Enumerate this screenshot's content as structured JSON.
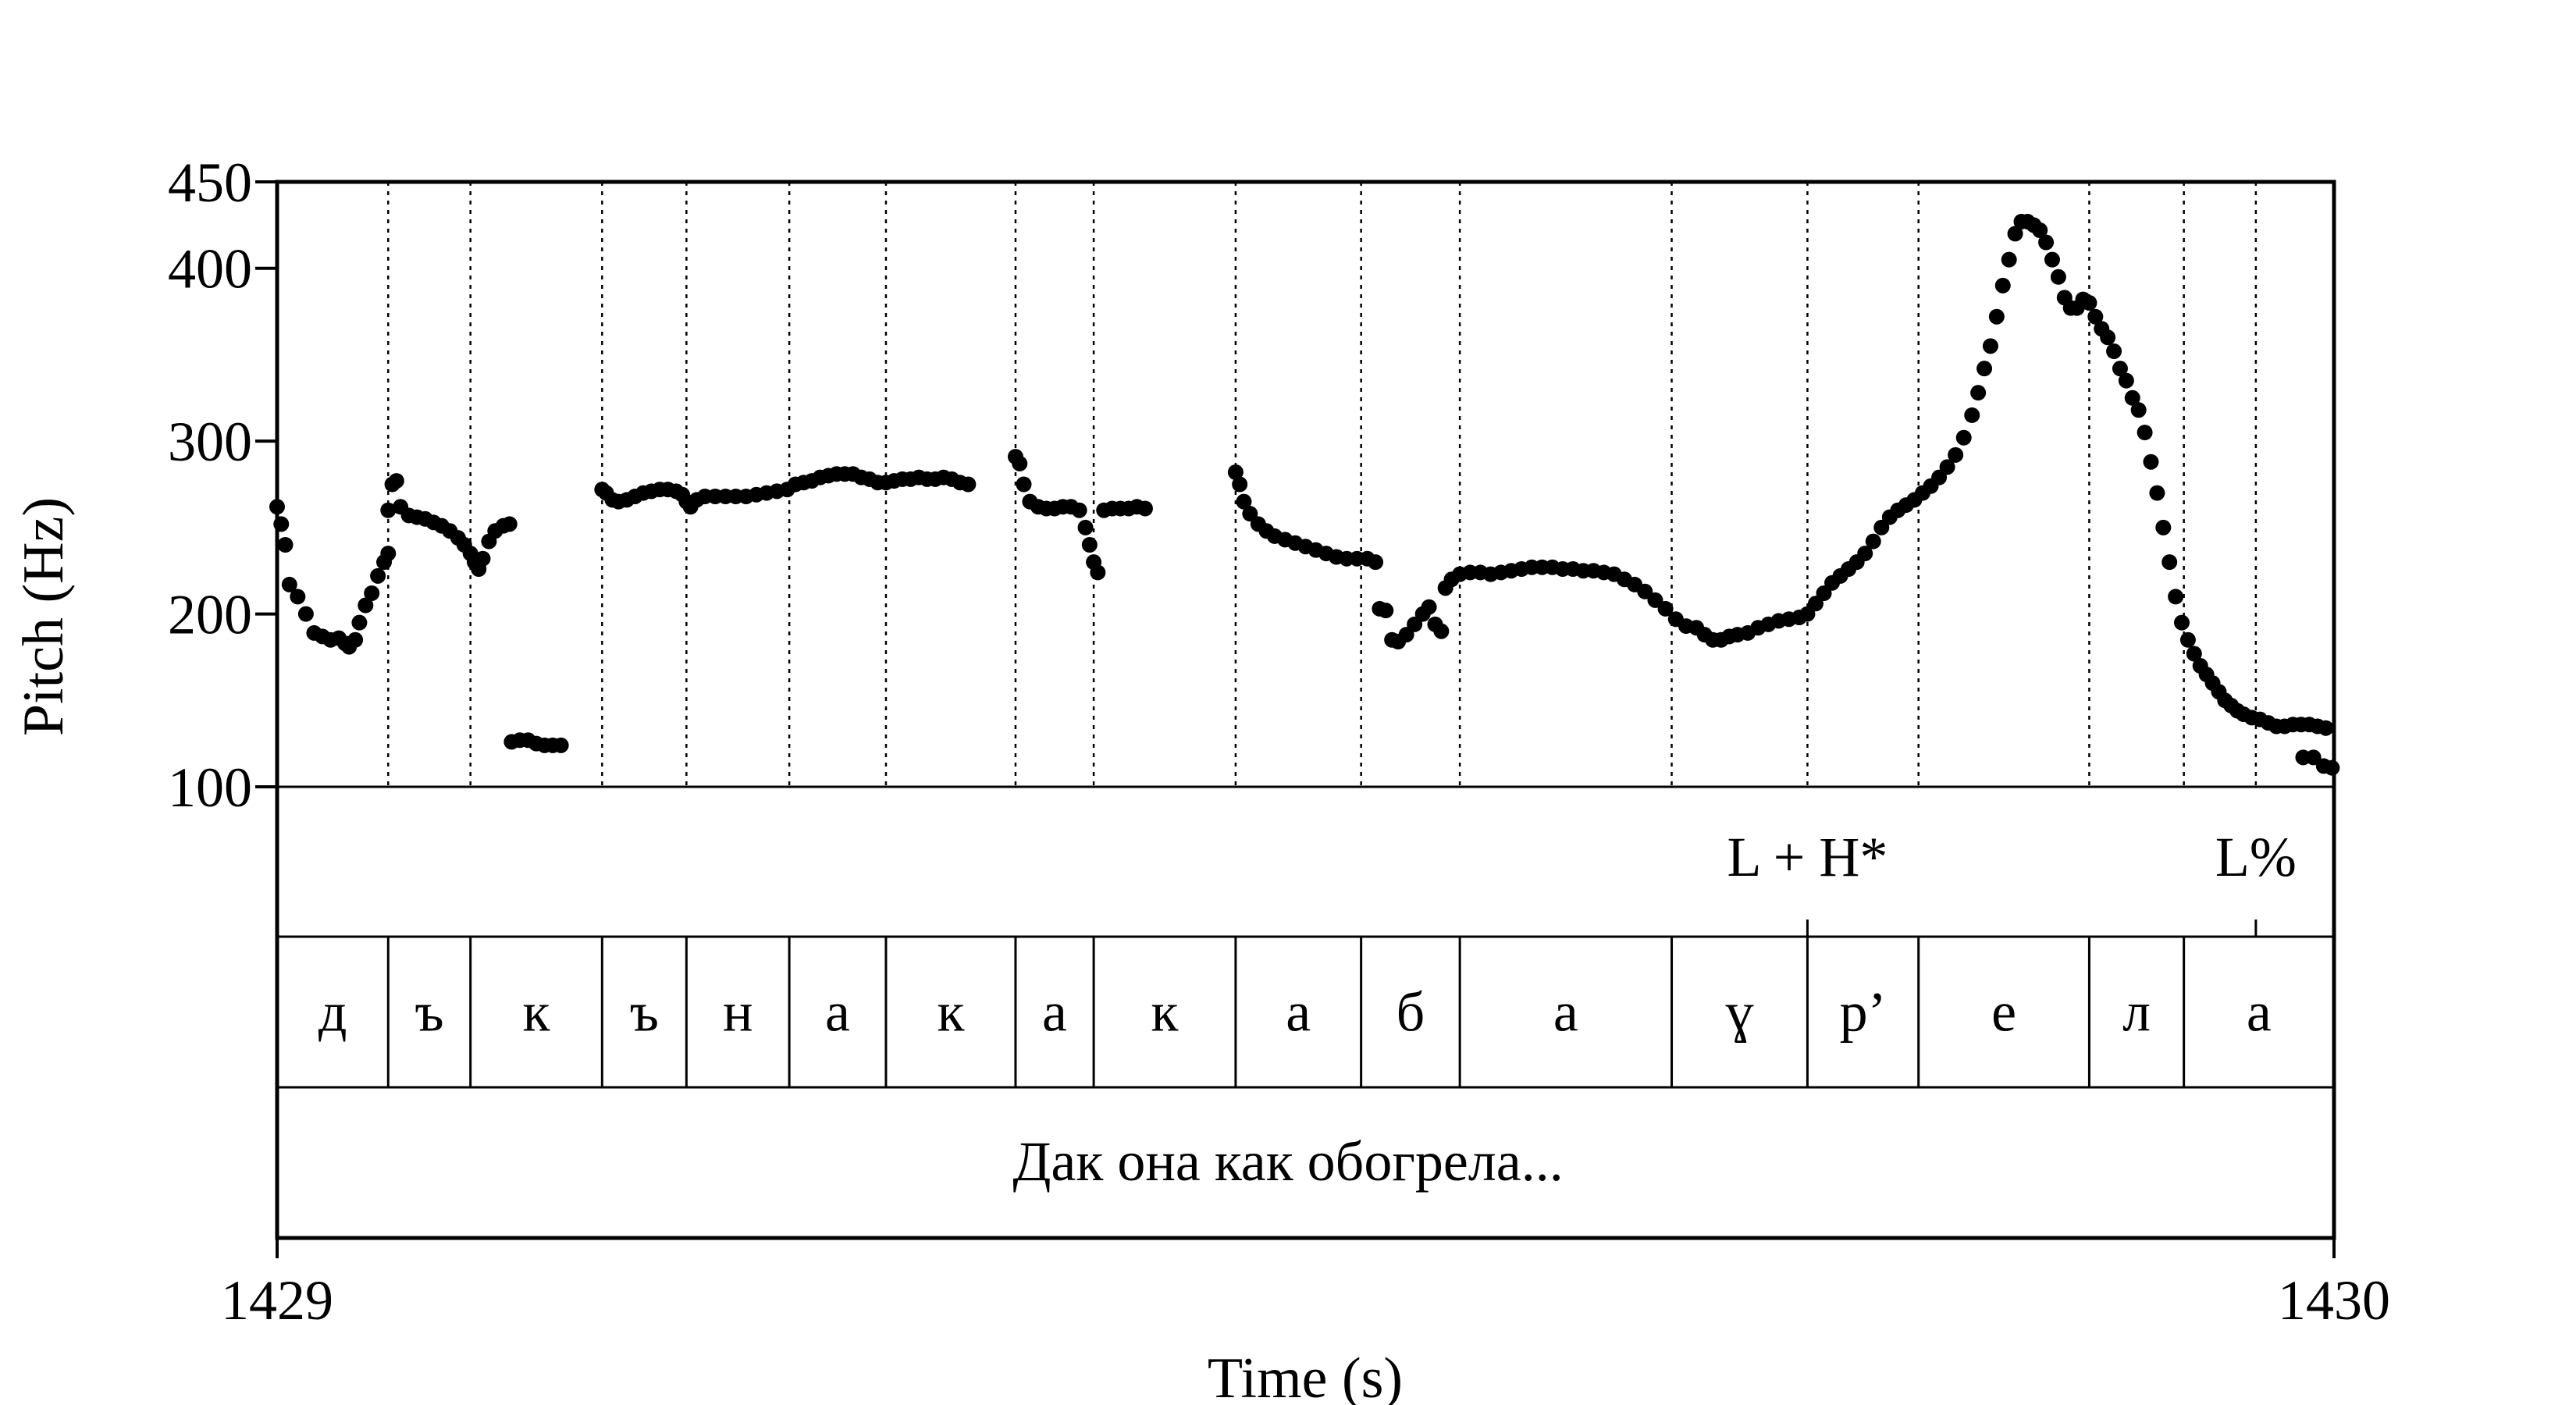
{
  "chart_data": {
    "type": "scatter",
    "xlabel": "Time (s)",
    "ylabel": "Pitch (Hz)",
    "xlim": [
      1429,
      1430
    ],
    "ylim": [
      100,
      450
    ],
    "x_ticks": [
      "1429",
      "1430"
    ],
    "y_ticks": [
      {
        "value": 100,
        "label": "100"
      },
      {
        "value": 200,
        "label": "200"
      },
      {
        "value": 300,
        "label": "300"
      },
      {
        "value": 400,
        "label": "400"
      },
      {
        "value": 450,
        "label": "450"
      }
    ],
    "boundaries": [
      0.054,
      0.094,
      0.158,
      0.199,
      0.249,
      0.296,
      0.359,
      0.397,
      0.466,
      0.527,
      0.575,
      0.678,
      0.744,
      0.798,
      0.881,
      0.927,
      0.962
    ],
    "segments": [
      {
        "label": "д",
        "start": 0.0,
        "end": 0.054
      },
      {
        "label": "ъ",
        "start": 0.054,
        "end": 0.094
      },
      {
        "label": "к",
        "start": 0.094,
        "end": 0.158
      },
      {
        "label": "ъ",
        "start": 0.158,
        "end": 0.199
      },
      {
        "label": "н",
        "start": 0.199,
        "end": 0.249
      },
      {
        "label": "а",
        "start": 0.249,
        "end": 0.296
      },
      {
        "label": "к",
        "start": 0.296,
        "end": 0.359
      },
      {
        "label": "а",
        "start": 0.359,
        "end": 0.397
      },
      {
        "label": "к",
        "start": 0.397,
        "end": 0.466
      },
      {
        "label": "а",
        "start": 0.466,
        "end": 0.527
      },
      {
        "label": "б",
        "start": 0.527,
        "end": 0.575
      },
      {
        "label": "а",
        "start": 0.575,
        "end": 0.678
      },
      {
        "label": "ɣ",
        "start": 0.678,
        "end": 0.744
      },
      {
        "label": "р’",
        "start": 0.744,
        "end": 0.798
      },
      {
        "label": "е",
        "start": 0.798,
        "end": 0.881
      },
      {
        "label": "л",
        "start": 0.881,
        "end": 0.927
      },
      {
        "label": "а",
        "start": 0.927,
        "end": 1.0
      }
    ],
    "tones": [
      {
        "label": "L + H*",
        "time": 0.744
      },
      {
        "label": "L%",
        "time": 0.962
      }
    ],
    "sentence": "Дак она как обогрела...",
    "pitch_runs": [
      [
        [
          0.0,
          262
        ],
        [
          0.002,
          252
        ],
        [
          0.004,
          240
        ],
        [
          0.006,
          217
        ],
        [
          0.01,
          210
        ],
        [
          0.014,
          200
        ],
        [
          0.018,
          189
        ],
        [
          0.022,
          187
        ],
        [
          0.026,
          185
        ],
        [
          0.03,
          186
        ],
        [
          0.033,
          183
        ],
        [
          0.035,
          181
        ],
        [
          0.038,
          185
        ],
        [
          0.04,
          195
        ],
        [
          0.043,
          205
        ],
        [
          0.046,
          212
        ],
        [
          0.049,
          222
        ],
        [
          0.052,
          230
        ],
        [
          0.054,
          235
        ]
      ],
      [
        [
          0.054,
          260
        ],
        [
          0.056,
          275
        ],
        [
          0.058,
          277
        ],
        [
          0.06,
          262
        ],
        [
          0.064,
          257
        ],
        [
          0.068,
          256
        ],
        [
          0.072,
          255
        ],
        [
          0.076,
          253
        ],
        [
          0.08,
          251
        ],
        [
          0.084,
          248
        ],
        [
          0.088,
          244
        ],
        [
          0.091,
          240
        ],
        [
          0.094,
          235
        ],
        [
          0.096,
          230
        ],
        [
          0.098,
          226
        ],
        [
          0.1,
          232
        ],
        [
          0.103,
          242
        ],
        [
          0.106,
          248
        ],
        [
          0.11,
          251
        ],
        [
          0.113,
          252
        ]
      ],
      [
        [
          0.114,
          126
        ],
        [
          0.118,
          127
        ],
        [
          0.122,
          127
        ],
        [
          0.126,
          125
        ],
        [
          0.13,
          124
        ],
        [
          0.134,
          124
        ],
        [
          0.138,
          124
        ]
      ],
      [
        [
          0.158,
          272
        ],
        [
          0.16,
          270
        ],
        [
          0.163,
          266
        ],
        [
          0.166,
          265
        ],
        [
          0.17,
          266
        ],
        [
          0.174,
          268
        ],
        [
          0.178,
          270
        ],
        [
          0.182,
          271
        ],
        [
          0.186,
          272
        ],
        [
          0.19,
          272
        ],
        [
          0.194,
          271
        ],
        [
          0.197,
          269
        ],
        [
          0.199,
          265
        ],
        [
          0.201,
          262
        ],
        [
          0.204,
          266
        ],
        [
          0.208,
          268
        ],
        [
          0.213,
          268
        ],
        [
          0.218,
          268
        ],
        [
          0.223,
          268
        ],
        [
          0.228,
          268
        ],
        [
          0.233,
          269
        ],
        [
          0.238,
          270
        ],
        [
          0.243,
          271
        ],
        [
          0.248,
          272
        ],
        [
          0.252,
          275
        ],
        [
          0.256,
          276
        ],
        [
          0.26,
          277
        ],
        [
          0.264,
          279
        ],
        [
          0.268,
          280
        ],
        [
          0.272,
          281
        ],
        [
          0.276,
          281
        ],
        [
          0.28,
          281
        ],
        [
          0.284,
          279
        ],
        [
          0.288,
          278
        ],
        [
          0.292,
          276
        ],
        [
          0.296,
          276
        ],
        [
          0.3,
          277
        ],
        [
          0.304,
          278
        ],
        [
          0.308,
          278
        ],
        [
          0.312,
          279
        ],
        [
          0.316,
          278
        ],
        [
          0.32,
          278
        ],
        [
          0.324,
          279
        ],
        [
          0.328,
          278
        ],
        [
          0.332,
          276
        ],
        [
          0.336,
          275
        ]
      ],
      [
        [
          0.359,
          291
        ],
        [
          0.361,
          287
        ],
        [
          0.363,
          275
        ],
        [
          0.366,
          265
        ],
        [
          0.37,
          262
        ],
        [
          0.374,
          261
        ],
        [
          0.378,
          261
        ],
        [
          0.382,
          262
        ],
        [
          0.386,
          262
        ],
        [
          0.39,
          260
        ],
        [
          0.393,
          250
        ],
        [
          0.395,
          240
        ],
        [
          0.397,
          230
        ],
        [
          0.399,
          224
        ]
      ],
      [
        [
          0.402,
          260
        ],
        [
          0.406,
          261
        ],
        [
          0.41,
          261
        ],
        [
          0.414,
          261
        ],
        [
          0.418,
          262
        ],
        [
          0.422,
          261
        ]
      ],
      [
        [
          0.466,
          282
        ],
        [
          0.468,
          275
        ],
        [
          0.47,
          265
        ],
        [
          0.473,
          258
        ],
        [
          0.477,
          252
        ],
        [
          0.481,
          248
        ],
        [
          0.485,
          245
        ],
        [
          0.49,
          243
        ],
        [
          0.495,
          241
        ],
        [
          0.5,
          239
        ],
        [
          0.505,
          237
        ],
        [
          0.51,
          235
        ],
        [
          0.515,
          233
        ],
        [
          0.52,
          232
        ],
        [
          0.525,
          232
        ],
        [
          0.53,
          232
        ],
        [
          0.534,
          230
        ]
      ],
      [
        [
          0.536,
          203
        ],
        [
          0.539,
          202
        ],
        [
          0.542,
          185
        ],
        [
          0.545,
          184
        ],
        [
          0.549,
          188
        ],
        [
          0.553,
          194
        ],
        [
          0.557,
          200
        ],
        [
          0.56,
          204
        ],
        [
          0.563,
          194
        ],
        [
          0.566,
          190
        ]
      ],
      [
        [
          0.568,
          215
        ],
        [
          0.571,
          220
        ],
        [
          0.575,
          223
        ],
        [
          0.58,
          224
        ],
        [
          0.585,
          224
        ],
        [
          0.59,
          223
        ],
        [
          0.595,
          224
        ],
        [
          0.6,
          225
        ],
        [
          0.605,
          226
        ],
        [
          0.61,
          227
        ],
        [
          0.615,
          227
        ],
        [
          0.62,
          227
        ],
        [
          0.625,
          226
        ],
        [
          0.63,
          226
        ],
        [
          0.635,
          225
        ],
        [
          0.64,
          225
        ],
        [
          0.645,
          224
        ],
        [
          0.65,
          223
        ],
        [
          0.655,
          220
        ],
        [
          0.66,
          217
        ],
        [
          0.665,
          213
        ],
        [
          0.67,
          208
        ],
        [
          0.675,
          203
        ],
        [
          0.68,
          197
        ],
        [
          0.685,
          193
        ],
        [
          0.69,
          192
        ],
        [
          0.694,
          188
        ],
        [
          0.698,
          185
        ],
        [
          0.702,
          185
        ],
        [
          0.706,
          187
        ],
        [
          0.71,
          188
        ],
        [
          0.715,
          189
        ],
        [
          0.72,
          192
        ],
        [
          0.725,
          194
        ],
        [
          0.73,
          196
        ],
        [
          0.735,
          197
        ],
        [
          0.74,
          198
        ],
        [
          0.744,
          200
        ],
        [
          0.748,
          206
        ],
        [
          0.752,
          212
        ],
        [
          0.756,
          218
        ],
        [
          0.76,
          222
        ],
        [
          0.764,
          226
        ],
        [
          0.768,
          230
        ],
        [
          0.772,
          235
        ],
        [
          0.776,
          242
        ],
        [
          0.78,
          250
        ],
        [
          0.784,
          256
        ],
        [
          0.788,
          260
        ],
        [
          0.792,
          263
        ],
        [
          0.796,
          266
        ],
        [
          0.8,
          270
        ],
        [
          0.804,
          274
        ],
        [
          0.808,
          279
        ],
        [
          0.812,
          285
        ],
        [
          0.816,
          292
        ],
        [
          0.82,
          302
        ],
        [
          0.824,
          315
        ],
        [
          0.827,
          328
        ],
        [
          0.83,
          342
        ],
        [
          0.833,
          355
        ],
        [
          0.836,
          372
        ],
        [
          0.839,
          390
        ],
        [
          0.842,
          405
        ],
        [
          0.845,
          420
        ],
        [
          0.848,
          427
        ],
        [
          0.851,
          427
        ],
        [
          0.854,
          425
        ],
        [
          0.857,
          422
        ],
        [
          0.86,
          415
        ],
        [
          0.863,
          405
        ],
        [
          0.866,
          395
        ],
        [
          0.869,
          383
        ],
        [
          0.872,
          377
        ],
        [
          0.875,
          377
        ],
        [
          0.878,
          382
        ],
        [
          0.881,
          380
        ],
        [
          0.884,
          372
        ],
        [
          0.887,
          365
        ],
        [
          0.89,
          360
        ],
        [
          0.893,
          352
        ],
        [
          0.896,
          342
        ],
        [
          0.899,
          335
        ],
        [
          0.902,
          325
        ],
        [
          0.905,
          318
        ],
        [
          0.908,
          305
        ],
        [
          0.911,
          288
        ],
        [
          0.914,
          270
        ],
        [
          0.917,
          250
        ],
        [
          0.92,
          230
        ],
        [
          0.923,
          210
        ],
        [
          0.926,
          195
        ],
        [
          0.929,
          185
        ],
        [
          0.932,
          177
        ],
        [
          0.935,
          170
        ],
        [
          0.938,
          165
        ],
        [
          0.941,
          160
        ],
        [
          0.944,
          155
        ],
        [
          0.947,
          150
        ],
        [
          0.95,
          147
        ],
        [
          0.953,
          144
        ],
        [
          0.956,
          142
        ],
        [
          0.96,
          140
        ],
        [
          0.964,
          139
        ],
        [
          0.968,
          137
        ],
        [
          0.972,
          135
        ],
        [
          0.976,
          135
        ],
        [
          0.98,
          136
        ],
        [
          0.984,
          136
        ],
        [
          0.988,
          136
        ],
        [
          0.992,
          135
        ],
        [
          0.996,
          134
        ]
      ],
      [
        [
          0.985,
          117
        ],
        [
          0.99,
          117
        ],
        [
          0.995,
          112
        ],
        [
          0.999,
          111
        ]
      ]
    ]
  }
}
